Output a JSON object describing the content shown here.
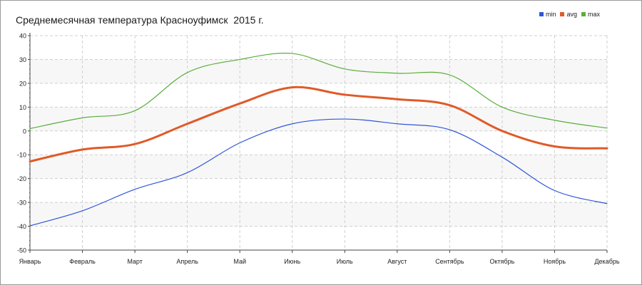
{
  "chart_data": {
    "type": "line",
    "title": "Среднемесячная температура Красноуфимск  2015 г.",
    "xlabel": "",
    "ylabel": "",
    "categories": [
      "Январь",
      "Февраль",
      "Март",
      "Апрель",
      "Май",
      "Июнь",
      "Июль",
      "Август",
      "Сентябрь",
      "Октябрь",
      "Ноябрь",
      "Декабрь"
    ],
    "ylim": [
      -50,
      40
    ],
    "yticks": [
      40,
      30,
      20,
      10,
      0,
      -10,
      -20,
      -30,
      -40,
      -50
    ],
    "grid": true,
    "legend_position": "top-right",
    "series": [
      {
        "name": "min",
        "color": "#2f56d8",
        "values": [
          -39.8,
          -33.5,
          -24.5,
          -17.5,
          -5.0,
          3.0,
          5.0,
          3.0,
          0.5,
          -11.0,
          -25.0,
          -30.5
        ]
      },
      {
        "name": "avg",
        "color": "#e05a28",
        "values": [
          -12.8,
          -7.8,
          -5.5,
          3.0,
          11.5,
          18.3,
          15.2,
          13.3,
          10.8,
          0.0,
          -6.5,
          -7.3
        ]
      },
      {
        "name": "max",
        "color": "#5aad3a",
        "values": [
          1.0,
          5.5,
          8.5,
          24.5,
          30.0,
          32.5,
          26.0,
          24.2,
          23.5,
          10.0,
          4.5,
          1.2
        ]
      }
    ]
  }
}
